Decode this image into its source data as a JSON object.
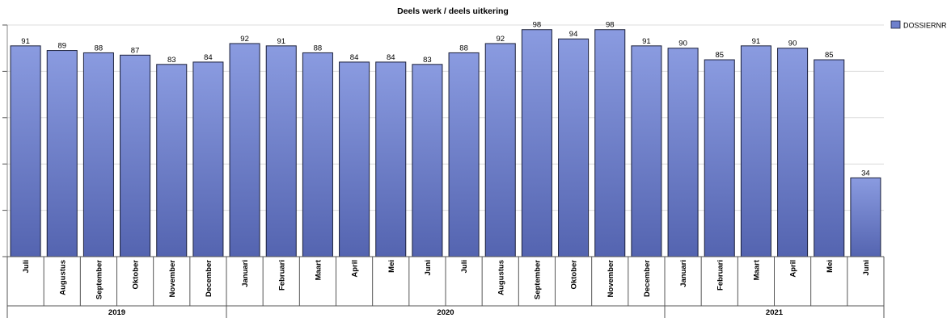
{
  "chart_data": {
    "type": "bar",
    "title": "Deels werk / deels uitkering",
    "xlabel": "",
    "ylabel": "",
    "ylim": [
      0,
      100
    ],
    "grid": true,
    "legend_position": "top-right",
    "series": [
      {
        "name": "DOSSIERNR",
        "values": [
          91,
          89,
          88,
          87,
          83,
          84,
          92,
          91,
          88,
          84,
          84,
          83,
          88,
          92,
          98,
          94,
          98,
          91,
          90,
          85,
          91,
          90,
          85,
          34
        ]
      }
    ],
    "categories": [
      "Juli",
      "Augustus",
      "September",
      "Oktober",
      "November",
      "December",
      "Januari",
      "Februari",
      "Maart",
      "April",
      "Mei",
      "Juni",
      "Juli",
      "Augustus",
      "September",
      "Oktober",
      "November",
      "December",
      "Januari",
      "Februari",
      "Maart",
      "April",
      "Mei",
      "Juni"
    ],
    "groups": [
      {
        "label": "2019",
        "count": 6
      },
      {
        "label": "2020",
        "count": 12
      },
      {
        "label": "2021",
        "count": 6
      }
    ],
    "colors": {
      "bar_top": "#8a9be0",
      "bar_bottom": "#5464b0",
      "bar_stroke": "#1a1f3a",
      "legend_fill": "#6e80cc",
      "grid": "#dcdcdc"
    }
  }
}
